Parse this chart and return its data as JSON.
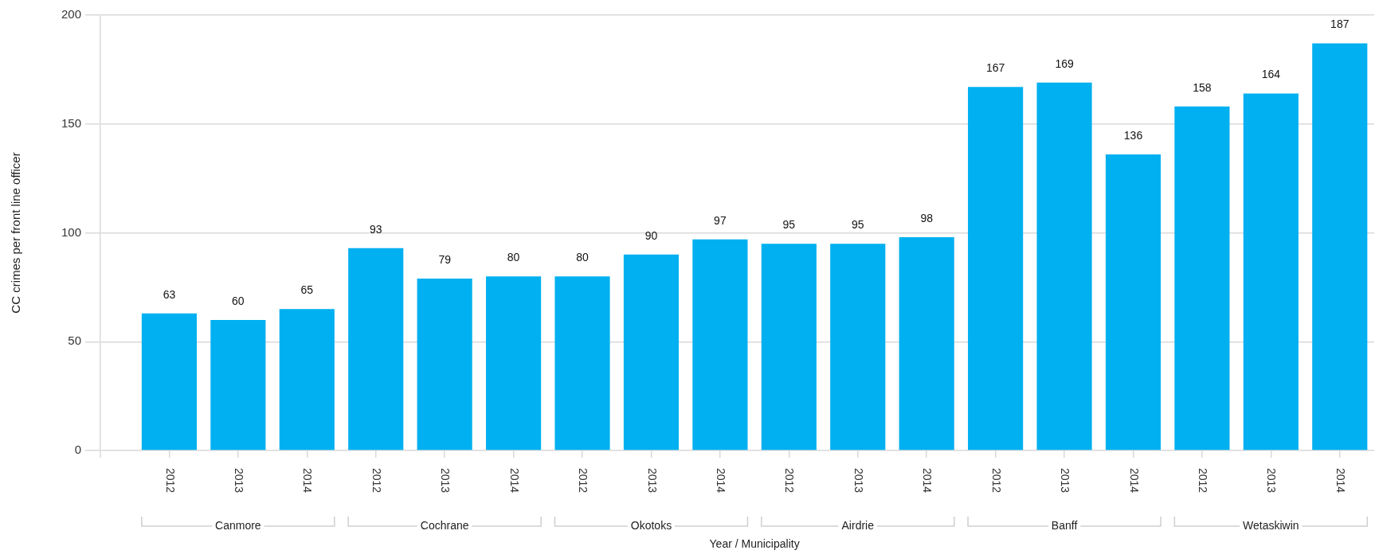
{
  "chart_data": {
    "type": "bar",
    "categories": [
      "2012",
      "2013",
      "2014",
      "2012",
      "2013",
      "2014",
      "2012",
      "2013",
      "2014",
      "2012",
      "2013",
      "2014",
      "2012",
      "2013",
      "2014",
      "2012",
      "2013",
      "2014"
    ],
    "values": [
      63,
      60,
      65,
      93,
      79,
      80,
      80,
      90,
      97,
      95,
      95,
      98,
      167,
      169,
      136,
      158,
      164,
      187
    ],
    "color": "#00b0f0",
    "xlabel": "Year / Municipality",
    "ylabel": "CC crimes per front line officer",
    "ylim": [
      0,
      200
    ],
    "yticks": [
      0,
      50,
      100,
      150,
      200
    ],
    "grid": "y",
    "data_labels": true,
    "annotations": [
      "Canmore",
      "Cochrane",
      "Okotoks",
      "Airdrie",
      "Banff",
      "Wetaskiwin"
    ]
  }
}
